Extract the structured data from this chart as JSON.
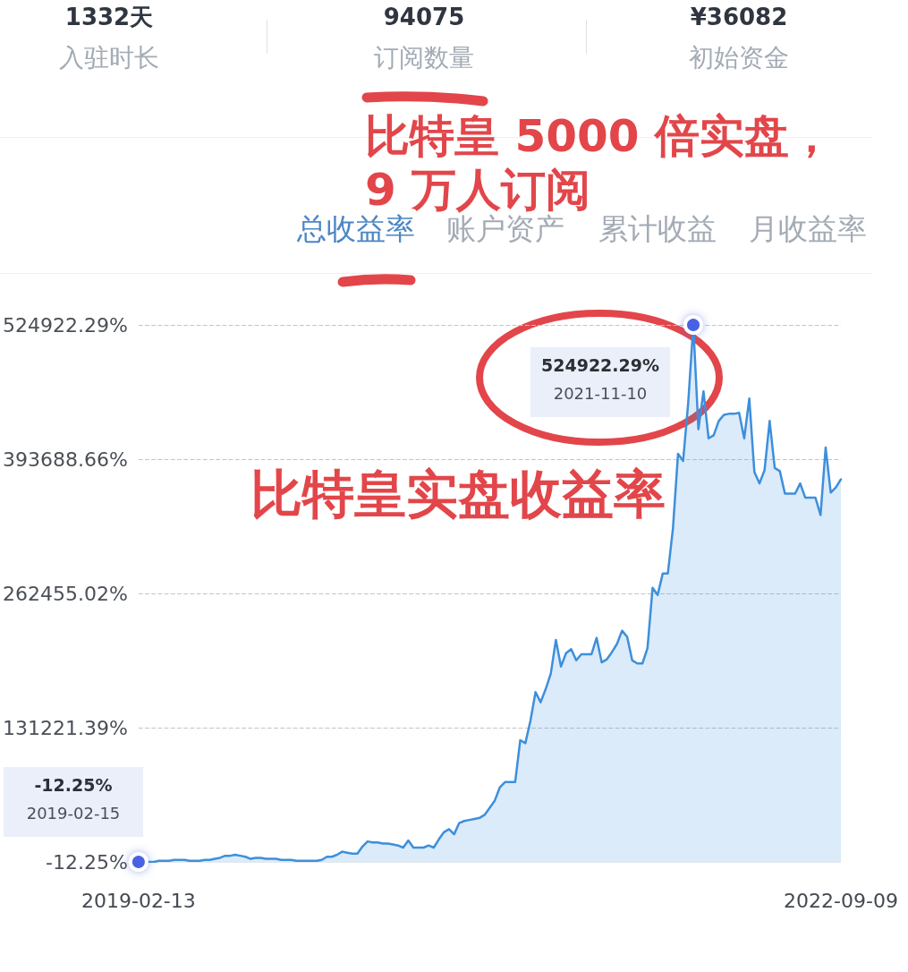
{
  "chart_data": {
    "type": "area",
    "title": "比特皇 5000 倍实盘，9 万人订阅",
    "categories": [
      "2019-02-13",
      null,
      null,
      null,
      null,
      null,
      null,
      null,
      null,
      null,
      null,
      null,
      null,
      null,
      null,
      null,
      null,
      null,
      null,
      null,
      null,
      null,
      null,
      null,
      null,
      null,
      null,
      null,
      null,
      null,
      null,
      null,
      null,
      null,
      null,
      null,
      null,
      null,
      null,
      null,
      null,
      null,
      null,
      null,
      null,
      null,
      null,
      null,
      null,
      null,
      null,
      null,
      null,
      null,
      null,
      null,
      null,
      null,
      null,
      null,
      null,
      null,
      null,
      null,
      null,
      null,
      null,
      null,
      null,
      null,
      null,
      null,
      null,
      null,
      null,
      null,
      null,
      null,
      null,
      null,
      null,
      null,
      null,
      null,
      null,
      null,
      null,
      null,
      null,
      null,
      null,
      null,
      null,
      null,
      null,
      null,
      null,
      null,
      null,
      null,
      null,
      null,
      null,
      null,
      null,
      null,
      null,
      null,
      null,
      null,
      null,
      null,
      null,
      null,
      null,
      null,
      null,
      null,
      null,
      null,
      null,
      null,
      null,
      null,
      null,
      null,
      null,
      null,
      null,
      null,
      null,
      null,
      null,
      null,
      null,
      null,
      null,
      null,
      "2022-09-09"
    ],
    "values": [
      -12.25,
      0,
      0,
      0,
      1000,
      1000,
      1000,
      2000,
      2000,
      2000,
      1000,
      1000,
      1000,
      2000,
      2000,
      3000,
      4000,
      6000,
      6000,
      7000,
      6000,
      5000,
      3000,
      4000,
      4000,
      3000,
      3000,
      3000,
      2000,
      2000,
      2000,
      1000,
      1000,
      1000,
      1000,
      1000,
      2000,
      5000,
      5000,
      7000,
      10000,
      9000,
      8000,
      8000,
      15000,
      20000,
      19000,
      19000,
      18000,
      18000,
      17000,
      16000,
      14000,
      21000,
      14000,
      14000,
      14000,
      16000,
      14000,
      22000,
      29000,
      32000,
      27000,
      38000,
      40000,
      41000,
      42000,
      43000,
      46000,
      53000,
      60000,
      73000,
      78000,
      78000,
      78000,
      119000,
      116000,
      138000,
      166000,
      156000,
      169000,
      184000,
      217000,
      191000,
      204000,
      208000,
      197000,
      203000,
      203000,
      203000,
      219000,
      195000,
      198000,
      205000,
      213000,
      226000,
      220000,
      197000,
      194000,
      194000,
      209000,
      268000,
      261000,
      282000,
      282000,
      326000,
      399000,
      392000,
      449000,
      524922.29,
      423000,
      460000,
      414000,
      417000,
      431000,
      437000,
      438000,
      438000,
      439000,
      414000,
      453000,
      381000,
      370000,
      383000,
      431000,
      385000,
      382000,
      360000,
      360000,
      360000,
      370000,
      356000,
      356000,
      356000,
      339000,
      405000,
      361000,
      366000,
      374000
    ],
    "color": "#3d8fdc",
    "ylim": [
      -12.25,
      524922.29
    ],
    "yticks": [
      {
        "value": -12.25,
        "label": "-12.25%"
      },
      {
        "value": 131221.39,
        "label": "131221.39%"
      },
      {
        "value": 262455.02,
        "label": "262455.02%"
      },
      {
        "value": 393688.66,
        "label": "393688.66%"
      },
      {
        "value": 524922.29,
        "label": "524922.29%"
      }
    ],
    "grid": "y",
    "marker": "none",
    "line_style": "solid",
    "annotations": [
      "1332天",
      "入驻时长",
      "94075",
      "订阅数量",
      "¥36082",
      "初始资金",
      "总收益率",
      "账户资产",
      "累计收益",
      "月收益率",
      "比特皇实盘收益率",
      "524922.29%\n2021-11-10",
      "-12.25%\n2019-02-15"
    ]
  }
}
